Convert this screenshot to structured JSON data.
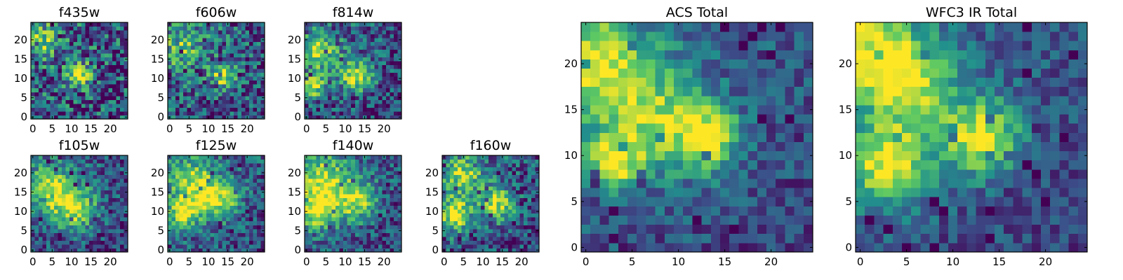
{
  "figure": {
    "colormap": "viridis",
    "colormap_stops": [
      "#440154",
      "#3b528b",
      "#21918c",
      "#5ec962",
      "#fde725"
    ]
  },
  "chart_data": [
    {
      "type": "heatmap",
      "title": "f435w",
      "size": [
        25,
        25
      ],
      "xlim": [
        0,
        24
      ],
      "ylim": [
        0,
        24
      ],
      "xticks": [
        "0",
        "5",
        "10",
        "15",
        "20"
      ],
      "yticks": [
        "0",
        "5",
        "10",
        "15",
        "20"
      ],
      "features": [
        {
          "x": 12,
          "y": 11,
          "peak": 0.95,
          "spread": 2.2
        },
        {
          "x": 2,
          "y": 20,
          "peak": 0.6,
          "spread": 3
        }
      ],
      "base": 0.5,
      "noise": 0.45
    },
    {
      "type": "heatmap",
      "title": "f606w",
      "size": [
        25,
        25
      ],
      "xlim": [
        0,
        24
      ],
      "ylim": [
        0,
        24
      ],
      "xticks": [
        "0",
        "5",
        "10",
        "15",
        "20"
      ],
      "yticks": [
        "0",
        "5",
        "10",
        "15",
        "20"
      ],
      "features": [
        {
          "x": 14,
          "y": 11,
          "peak": 0.95,
          "spread": 2.2
        },
        {
          "x": 3,
          "y": 18,
          "peak": 0.5,
          "spread": 4
        }
      ],
      "base": 0.5,
      "noise": 0.4
    },
    {
      "type": "heatmap",
      "title": "f814w",
      "size": [
        25,
        25
      ],
      "xlim": [
        0,
        24
      ],
      "ylim": [
        0,
        24
      ],
      "xticks": [
        "0",
        "5",
        "10",
        "15",
        "20"
      ],
      "yticks": [
        "0",
        "5",
        "10",
        "15",
        "20"
      ],
      "features": [
        {
          "x": 13,
          "y": 11,
          "peak": 0.95,
          "spread": 3
        },
        {
          "x": 3,
          "y": 17,
          "peak": 0.85,
          "spread": 3.5
        },
        {
          "x": 2,
          "y": 8,
          "peak": 0.85,
          "spread": 2
        }
      ],
      "base": 0.45,
      "noise": 0.35
    },
    {
      "type": "heatmap",
      "title": "f105w",
      "size": [
        25,
        25
      ],
      "xlim": [
        0,
        24
      ],
      "ylim": [
        0,
        24
      ],
      "xticks": [
        "0",
        "5",
        "10",
        "15",
        "20"
      ],
      "yticks": [
        "0",
        "5",
        "10",
        "15",
        "20"
      ],
      "features": [
        {
          "x": 11,
          "y": 11,
          "peak": 0.9,
          "spread": 4
        },
        {
          "x": 4,
          "y": 16,
          "peak": 0.85,
          "spread": 4
        }
      ],
      "base": 0.45,
      "noise": 0.3
    },
    {
      "type": "heatmap",
      "title": "f125w",
      "size": [
        25,
        25
      ],
      "xlim": [
        0,
        24
      ],
      "ylim": [
        0,
        24
      ],
      "xticks": [
        "0",
        "5",
        "10",
        "15",
        "20"
      ],
      "yticks": [
        "0",
        "5",
        "10",
        "15",
        "20"
      ],
      "features": [
        {
          "x": 4,
          "y": 10,
          "peak": 0.95,
          "spread": 3
        },
        {
          "x": 13,
          "y": 13,
          "peak": 0.85,
          "spread": 3.5
        },
        {
          "x": 6,
          "y": 18,
          "peak": 0.75,
          "spread": 4
        }
      ],
      "base": 0.5,
      "noise": 0.3
    },
    {
      "type": "heatmap",
      "title": "f140w",
      "size": [
        25,
        25
      ],
      "xlim": [
        0,
        24
      ],
      "ylim": [
        0,
        24
      ],
      "xticks": [
        "0",
        "5",
        "10",
        "15",
        "20"
      ],
      "yticks": [
        "0",
        "5",
        "10",
        "15",
        "20"
      ],
      "features": [
        {
          "x": 3,
          "y": 11,
          "peak": 0.95,
          "spread": 4
        },
        {
          "x": 13,
          "y": 13,
          "peak": 0.85,
          "spread": 3.5
        },
        {
          "x": 5,
          "y": 19,
          "peak": 0.7,
          "spread": 4
        }
      ],
      "base": 0.5,
      "noise": 0.3
    },
    {
      "type": "heatmap",
      "title": "f160w",
      "size": [
        25,
        25
      ],
      "xlim": [
        0,
        24
      ],
      "ylim": [
        0,
        24
      ],
      "xticks": [
        "0",
        "5",
        "10",
        "15",
        "20"
      ],
      "yticks": [
        "0",
        "5",
        "10",
        "15",
        "20"
      ],
      "features": [
        {
          "x": 3,
          "y": 9,
          "peak": 0.95,
          "spread": 3
        },
        {
          "x": 14,
          "y": 12,
          "peak": 0.9,
          "spread": 3
        },
        {
          "x": 5,
          "y": 19,
          "peak": 0.8,
          "spread": 3.5
        }
      ],
      "base": 0.45,
      "noise": 0.35
    },
    {
      "type": "heatmap",
      "title": "ACS Total",
      "size": [
        25,
        25
      ],
      "xlim": [
        0,
        24
      ],
      "ylim": [
        0,
        24
      ],
      "xticks": [
        "0",
        "5",
        "10",
        "15",
        "20"
      ],
      "yticks": [
        "0",
        "5",
        "10",
        "15",
        "20"
      ],
      "features": [
        {
          "x": 13,
          "y": 12,
          "peak": 1.0,
          "spread": 2.5
        },
        {
          "x": 3,
          "y": 9,
          "peak": 0.95,
          "spread": 2
        },
        {
          "x": 1,
          "y": 20,
          "peak": 0.85,
          "spread": 4
        },
        {
          "x": 7,
          "y": 14,
          "peak": 0.7,
          "spread": 4
        }
      ],
      "base": 0.45,
      "noise": 0.22
    },
    {
      "type": "heatmap",
      "title": "WFC3 IR Total",
      "size": [
        25,
        25
      ],
      "xlim": [
        0,
        24
      ],
      "ylim": [
        0,
        24
      ],
      "xticks": [
        "0",
        "5",
        "10",
        "15",
        "20"
      ],
      "yticks": [
        "0",
        "5",
        "10",
        "15",
        "20"
      ],
      "features": [
        {
          "x": 3,
          "y": 9,
          "peak": 1.0,
          "spread": 3
        },
        {
          "x": 13,
          "y": 12,
          "peak": 0.95,
          "spread": 3
        },
        {
          "x": 5,
          "y": 18,
          "peak": 0.9,
          "spread": 3.5
        },
        {
          "x": 1,
          "y": 22,
          "peak": 0.85,
          "spread": 3
        }
      ],
      "base": 0.45,
      "noise": 0.2
    }
  ]
}
